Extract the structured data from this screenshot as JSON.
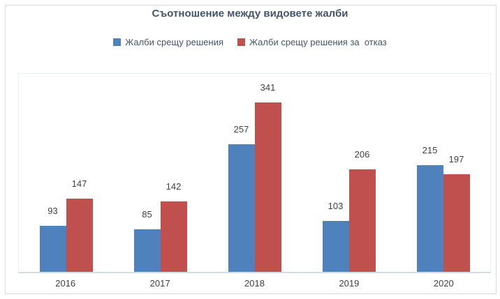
{
  "chart_title": "Съотношение между видовете жалби",
  "chart_data": {
    "type": "bar",
    "title": "Съотношение между видовете жалби",
    "categories": [
      "2016",
      "2017",
      "2018",
      "2019",
      "2020"
    ],
    "series": [
      {
        "name": "Жалби срещу решения",
        "color": "#4F81BD",
        "values": [
          93,
          85,
          257,
          103,
          215
        ]
      },
      {
        "name": "Жалби срещу решения за  отказ",
        "color": "#C0504D",
        "values": [
          147,
          142,
          341,
          206,
          197
        ]
      }
    ],
    "ylim": [
      0,
      400
    ],
    "grid": false,
    "legend_position": "top",
    "data_labels": "outside-end",
    "xlabel": "",
    "ylabel": ""
  },
  "colors": {
    "series1": "#4F81BD",
    "series2": "#C0504D",
    "title_text": "#44546A",
    "legend_text": "#44546A",
    "label_text": "#404040",
    "axis_line": "#CFDDEB",
    "plot_border": "#E7EEF6",
    "outer_border": "#D9D9D9",
    "background": "#FFFFFF"
  }
}
